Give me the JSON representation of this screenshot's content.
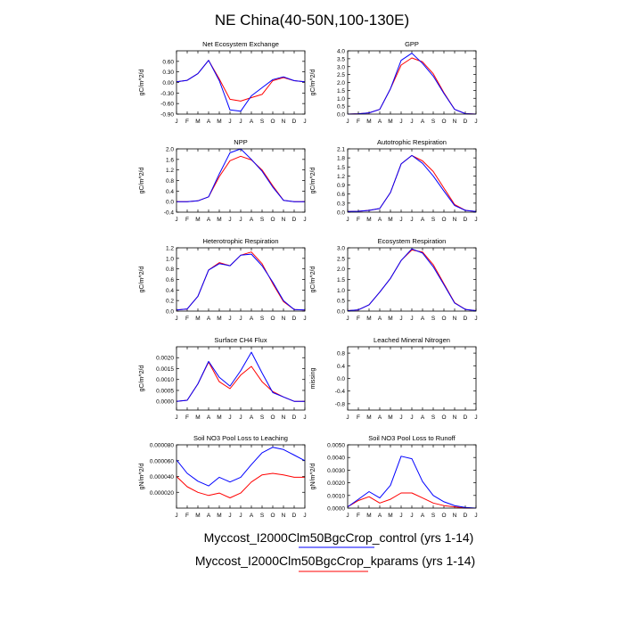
{
  "figure": {
    "title": "NE China(40-50N,100-130E)",
    "months": [
      "J",
      "F",
      "M",
      "A",
      "M",
      "J",
      "J",
      "A",
      "S",
      "O",
      "N",
      "D",
      "J"
    ],
    "legend": [
      {
        "label": "Myccost_I2000Clm50BgcCrop_control (yrs 1-14)",
        "color": "#0000ff"
      },
      {
        "label": "Myccost_I2000Clm50BgcCrop_kparams (yrs 1-14)",
        "color": "#ff0000"
      }
    ]
  },
  "chart_data": [
    {
      "type": "line",
      "title": "Net Ecosystem Exchange",
      "ylabel": "gC/m^2/d",
      "ylim": [
        -0.9,
        0.9
      ],
      "yticks": [
        "0.60",
        "0.30",
        "0.00",
        "-0.30",
        "-0.60",
        "-0.90"
      ],
      "ytick_values": [
        0.6,
        0.3,
        0.0,
        -0.3,
        -0.6,
        -0.9
      ],
      "series": [
        {
          "color": "#0000ff",
          "values": [
            0.02,
            0.06,
            0.25,
            0.63,
            0.05,
            -0.78,
            -0.82,
            -0.38,
            -0.15,
            0.08,
            0.16,
            0.05,
            0.02
          ]
        },
        {
          "color": "#ff0000",
          "values": [
            0.02,
            0.06,
            0.25,
            0.63,
            0.1,
            -0.48,
            -0.53,
            -0.43,
            -0.34,
            0.05,
            0.14,
            0.05,
            0.02
          ]
        }
      ]
    },
    {
      "type": "line",
      "title": "GPP",
      "ylabel": "gC/m^2/d",
      "ylim": [
        0,
        4.0
      ],
      "yticks": [
        "4.0",
        "3.5",
        "3.0",
        "2.5",
        "2.0",
        "1.5",
        "1.0",
        "0.5",
        "0.0"
      ],
      "ytick_values": [
        4.0,
        3.5,
        3.0,
        2.5,
        2.0,
        1.5,
        1.0,
        0.5,
        0.0
      ],
      "series": [
        {
          "color": "#0000ff",
          "values": [
            0.0,
            0.02,
            0.08,
            0.3,
            1.6,
            3.4,
            3.85,
            3.2,
            2.4,
            1.3,
            0.3,
            0.03,
            0.0
          ]
        },
        {
          "color": "#ff0000",
          "values": [
            0.0,
            0.02,
            0.08,
            0.3,
            1.6,
            3.1,
            3.55,
            3.3,
            2.55,
            1.35,
            0.3,
            0.03,
            0.0
          ]
        }
      ]
    },
    {
      "type": "line",
      "title": "NPP",
      "ylabel": "gC/m^2/d",
      "ylim": [
        -0.4,
        2.0
      ],
      "yticks": [
        "2.0",
        "1.6",
        "1.2",
        "0.8",
        "0.4",
        "0.0",
        "-0.4"
      ],
      "ytick_values": [
        2.0,
        1.6,
        1.2,
        0.8,
        0.4,
        0.0,
        -0.4
      ],
      "series": [
        {
          "color": "#0000ff",
          "values": [
            0.0,
            0.0,
            0.03,
            0.18,
            1.05,
            1.85,
            2.0,
            1.6,
            1.15,
            0.55,
            0.05,
            0.0,
            0.0
          ]
        },
        {
          "color": "#ff0000",
          "values": [
            0.0,
            0.0,
            0.03,
            0.18,
            0.95,
            1.55,
            1.72,
            1.58,
            1.2,
            0.6,
            0.05,
            0.0,
            0.0
          ]
        }
      ]
    },
    {
      "type": "line",
      "title": "Autotrophic Respiration",
      "ylabel": "gC/m^2/d",
      "ylim": [
        0,
        2.1
      ],
      "yticks": [
        "2.1",
        "1.8",
        "1.5",
        "1.2",
        "0.9",
        "0.6",
        "0.3",
        "0.0"
      ],
      "ytick_values": [
        2.1,
        1.8,
        1.5,
        1.2,
        0.9,
        0.6,
        0.3,
        0.0
      ],
      "series": [
        {
          "color": "#0000ff",
          "values": [
            0.02,
            0.03,
            0.06,
            0.12,
            0.65,
            1.6,
            1.88,
            1.62,
            1.2,
            0.7,
            0.22,
            0.06,
            0.02
          ]
        },
        {
          "color": "#ff0000",
          "values": [
            0.02,
            0.03,
            0.06,
            0.12,
            0.65,
            1.6,
            1.88,
            1.7,
            1.35,
            0.8,
            0.25,
            0.06,
            0.02
          ]
        }
      ]
    },
    {
      "type": "line",
      "title": "Heterotrophic Respiration",
      "ylabel": "gC/m^2/d",
      "ylim": [
        0,
        1.2
      ],
      "yticks": [
        "1.2",
        "1.0",
        "0.8",
        "0.6",
        "0.4",
        "0.2",
        "0.0"
      ],
      "ytick_values": [
        1.2,
        1.0,
        0.8,
        0.6,
        0.4,
        0.2,
        0.0
      ],
      "series": [
        {
          "color": "#0000ff",
          "values": [
            0.02,
            0.04,
            0.28,
            0.78,
            0.9,
            0.86,
            1.06,
            1.08,
            0.86,
            0.55,
            0.2,
            0.03,
            0.02
          ]
        },
        {
          "color": "#ff0000",
          "values": [
            0.02,
            0.04,
            0.28,
            0.78,
            0.92,
            0.86,
            1.06,
            1.12,
            0.9,
            0.52,
            0.18,
            0.03,
            0.02
          ]
        }
      ]
    },
    {
      "type": "line",
      "title": "Ecosystem Respiration",
      "ylabel": "gC/m^2/d",
      "ylim": [
        0,
        3.0
      ],
      "yticks": [
        "3.0",
        "2.5",
        "2.0",
        "1.5",
        "1.0",
        "0.5",
        "0.0"
      ],
      "ytick_values": [
        3.0,
        2.5,
        2.0,
        1.5,
        1.0,
        0.5,
        0.0
      ],
      "series": [
        {
          "color": "#0000ff",
          "values": [
            0.02,
            0.06,
            0.3,
            0.9,
            1.55,
            2.4,
            2.95,
            2.75,
            2.1,
            1.25,
            0.38,
            0.08,
            0.02
          ]
        },
        {
          "color": "#ff0000",
          "values": [
            0.02,
            0.06,
            0.3,
            0.9,
            1.55,
            2.4,
            2.9,
            2.8,
            2.2,
            1.3,
            0.4,
            0.08,
            0.02
          ]
        }
      ]
    },
    {
      "type": "line",
      "title": "Surface CH4 Flux",
      "ylabel": "gC/m^2/d",
      "ylim": [
        -0.0004,
        0.0025
      ],
      "yticks": [
        "0.0020",
        "0.0015",
        "0.0010",
        "0.0005",
        "0.0000"
      ],
      "ytick_values": [
        0.002,
        0.0015,
        0.001,
        0.0005,
        0.0
      ],
      "series": [
        {
          "color": "#0000ff",
          "values": [
            0.0,
            5e-05,
            0.0008,
            0.00183,
            0.0011,
            0.0007,
            0.0014,
            0.00225,
            0.0013,
            0.0004,
            0.0002,
            0.0,
            0.0
          ]
        },
        {
          "color": "#ff0000",
          "values": [
            0.0,
            5e-05,
            0.0008,
            0.0018,
            0.0009,
            0.00058,
            0.0012,
            0.0016,
            0.0009,
            0.00045,
            0.0002,
            0.0,
            0.0
          ]
        }
      ]
    },
    {
      "type": "line",
      "title": "Leached Mineral Nitrogen",
      "ylabel": "missing",
      "ylim": [
        -1.0,
        1.0
      ],
      "yticks": [
        "0.8",
        "0.4",
        "0.0",
        "-0.4",
        "-0.8"
      ],
      "ytick_values": [
        0.8,
        0.4,
        0.0,
        -0.4,
        -0.8
      ],
      "series": []
    },
    {
      "type": "line",
      "title": "Soil NO3 Pool Loss to Leaching",
      "ylabel": "gN/m^2/d",
      "ylim": [
        0,
        8e-05
      ],
      "yticks": [
        "0.000080",
        "0.000060",
        "0.000040",
        "0.000020"
      ],
      "ytick_values": [
        8e-05,
        6e-05,
        4e-05,
        2e-05
      ],
      "series": [
        {
          "color": "#0000ff",
          "values": [
            6.1e-05,
            4.4e-05,
            3.4e-05,
            2.8e-05,
            3.9e-05,
            3.3e-05,
            3.9e-05,
            5.5e-05,
            7e-05,
            7.7e-05,
            7.4e-05,
            6.7e-05,
            6e-05
          ]
        },
        {
          "color": "#ff0000",
          "values": [
            4e-05,
            2.7e-05,
            2e-05,
            1.6e-05,
            1.9e-05,
            1.3e-05,
            1.9e-05,
            3.3e-05,
            4.2e-05,
            4.4e-05,
            4.2e-05,
            3.9e-05,
            3.9e-05
          ]
        }
      ]
    },
    {
      "type": "line",
      "title": "Soil NO3 Pool Loss to Runoff",
      "ylabel": "gN/m^2/d",
      "ylim": [
        0,
        0.005
      ],
      "yticks": [
        "0.0050",
        "0.0040",
        "0.0030",
        "0.0020",
        "0.0010",
        "0.0000"
      ],
      "ytick_values": [
        0.005,
        0.004,
        0.003,
        0.002,
        0.001,
        0.0
      ],
      "series": [
        {
          "color": "#0000ff",
          "values": [
            0.0001,
            0.0007,
            0.0013,
            0.0008,
            0.0018,
            0.0041,
            0.0039,
            0.0021,
            0.001,
            0.0005,
            0.0002,
            5e-05,
            0.0
          ]
        },
        {
          "color": "#ff0000",
          "values": [
            0.0001,
            0.0006,
            0.0009,
            0.0004,
            0.0007,
            0.0012,
            0.0012,
            0.0008,
            0.0004,
            0.0002,
            0.0001,
            0.0,
            0.0
          ]
        }
      ]
    }
  ]
}
